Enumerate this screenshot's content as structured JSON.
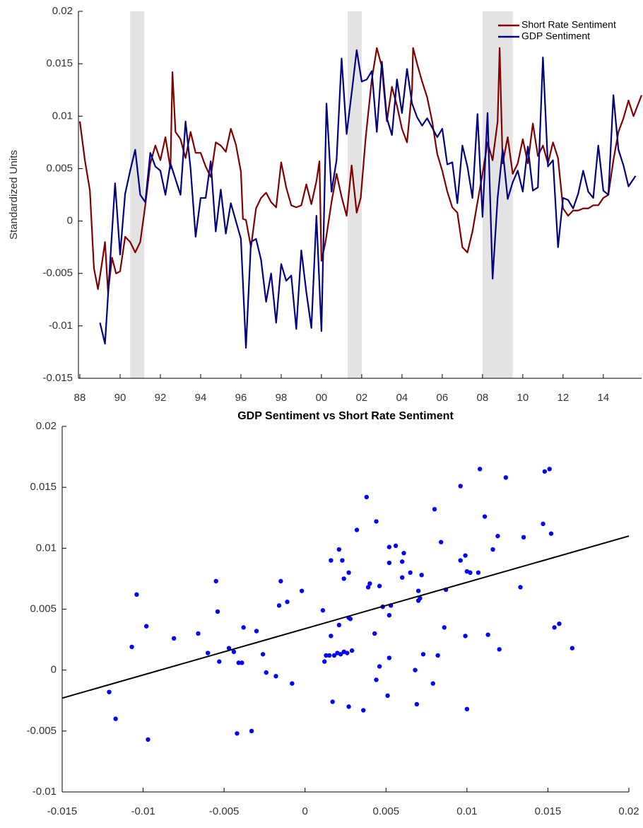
{
  "chart_data": [
    {
      "type": "line",
      "y_label": "Standardized Units",
      "xlim": [
        1987.93,
        2015.9
      ],
      "ylim": [
        -0.015,
        0.02
      ],
      "yticks": [
        -0.015,
        -0.01,
        -0.005,
        0,
        0.005,
        0.01,
        0.015,
        0.02
      ],
      "xticks": [
        {
          "value": 1988,
          "label": "88"
        },
        {
          "value": 1990,
          "label": "90"
        },
        {
          "value": 1992,
          "label": "92"
        },
        {
          "value": 1994,
          "label": "94"
        },
        {
          "value": 1996,
          "label": "96"
        },
        {
          "value": 1998,
          "label": "98"
        },
        {
          "value": 2000,
          "label": "00"
        },
        {
          "value": 2002,
          "label": "02"
        },
        {
          "value": 2004,
          "label": "04"
        },
        {
          "value": 2006,
          "label": "06"
        },
        {
          "value": 2008,
          "label": "08"
        },
        {
          "value": 2010,
          "label": "10"
        },
        {
          "value": 2012,
          "label": "12"
        },
        {
          "value": 2014,
          "label": "14"
        }
      ],
      "grid": false,
      "legend": "upper right",
      "shaded_periods": [
        [
          1990.5,
          1991.2
        ],
        [
          2001.3,
          2002.0
        ],
        [
          2008.0,
          2009.5
        ]
      ],
      "shade_color": "#e3e3e3",
      "series": [
        {
          "name": "Short Rate Sentiment",
          "color": "#800000",
          "x": [
            1988.0,
            1988.25,
            1988.5,
            1988.7,
            1988.9,
            1989.1,
            1989.25,
            1989.4,
            1989.6,
            1989.8,
            1990.0,
            1990.25,
            1990.5,
            1990.75,
            1991.0,
            1991.25,
            1991.5,
            1991.75,
            1992.0,
            1992.25,
            1992.5,
            1992.6,
            1992.75,
            1993.0,
            1993.25,
            1993.5,
            1993.75,
            1994.0,
            1994.25,
            1994.5,
            1994.75,
            1995.0,
            1995.25,
            1995.5,
            1995.75,
            1996.0,
            1996.1,
            1996.25,
            1996.5,
            1996.75,
            1997.0,
            1997.25,
            1997.5,
            1997.75,
            1998.0,
            1998.25,
            1998.5,
            1998.75,
            1999.0,
            1999.25,
            1999.5,
            1999.75,
            1999.9,
            2000.0,
            2000.2,
            2000.5,
            2000.75,
            2001.0,
            2001.25,
            2001.5,
            2001.75,
            2001.95,
            2002.2,
            2002.5,
            2002.75,
            2003.0,
            2003.25,
            2003.5,
            2003.75,
            2004.0,
            2004.25,
            2004.5,
            2004.55,
            2004.75,
            2005.0,
            2005.25,
            2005.5,
            2005.75,
            2006.0,
            2006.25,
            2006.5,
            2006.75,
            2007.0,
            2007.25,
            2007.5,
            2007.75,
            2008.0,
            2008.25,
            2008.5,
            2008.75,
            2008.85,
            2009.0,
            2009.25,
            2009.5,
            2009.75,
            2010.0,
            2010.25,
            2010.5,
            2010.75,
            2011.0,
            2011.25,
            2011.5,
            2011.75,
            2012.0,
            2012.25,
            2012.5,
            2012.75,
            2013.0,
            2013.25,
            2013.5,
            2013.75,
            2014.0,
            2014.25,
            2014.5,
            2014.75,
            2015.0,
            2015.25,
            2015.5,
            2015.9
          ],
          "values": [
            0.0095,
            0.0058,
            0.0029,
            -0.0045,
            -0.0065,
            -0.004,
            -0.002,
            -0.0068,
            -0.0035,
            -0.005,
            -0.0048,
            -0.0015,
            -0.002,
            -0.003,
            -0.002,
            0.0015,
            0.0055,
            0.0072,
            0.0058,
            0.008,
            0.005,
            0.0142,
            0.0085,
            0.0078,
            0.006,
            0.0085,
            0.0065,
            0.0065,
            0.0052,
            0.0042,
            0.0075,
            0.0072,
            0.0066,
            0.0088,
            0.0073,
            0.0047,
            0.0002,
            0.0001,
            -0.0025,
            0.0012,
            0.0022,
            0.0027,
            0.0018,
            0.0013,
            0.0056,
            0.0032,
            0.0015,
            0.0013,
            0.0015,
            0.0035,
            0.0016,
            0.0038,
            0.0057,
            -0.0038,
            -0.002,
            0.0018,
            0.0045,
            0.0023,
            0.0005,
            0.0053,
            0.0008,
            0.0022,
            0.008,
            0.0135,
            0.0165,
            0.0147,
            0.0095,
            0.0128,
            0.011,
            0.0088,
            0.0075,
            0.0125,
            0.0165,
            0.015,
            0.0133,
            0.0118,
            0.0095,
            0.0064,
            0.0048,
            0.0028,
            0.0013,
            0.0008,
            -0.0025,
            -0.003,
            -0.001,
            0.0018,
            0.0045,
            0.0075,
            0.0058,
            0.0095,
            0.0165,
            0.0055,
            0.008,
            0.0045,
            0.0055,
            0.0078,
            0.0055,
            0.0093,
            0.0062,
            0.0072,
            0.0055,
            0.0075,
            0.006,
            0.0012,
            0.0005,
            0.001,
            0.001,
            0.0012,
            0.0012,
            0.0015,
            0.0015,
            0.0022,
            0.0025,
            0.0058,
            0.0085,
            0.0098,
            0.0115,
            0.01,
            0.012
          ]
        },
        {
          "name": "GDP Sentiment",
          "color": "#000080",
          "x": [
            1989.0,
            1989.25,
            1989.75,
            1990.0,
            1990.25,
            1990.5,
            1990.75,
            1991.0,
            1991.25,
            1991.5,
            1991.75,
            1992.0,
            1992.25,
            1992.5,
            1992.75,
            1993.0,
            1993.25,
            1993.5,
            1993.75,
            1994.0,
            1994.25,
            1994.5,
            1994.75,
            1995.0,
            1995.25,
            1995.5,
            1995.75,
            1996.0,
            1996.25,
            1996.5,
            1996.75,
            1997.0,
            1997.25,
            1997.5,
            1997.75,
            1998.0,
            1998.25,
            1998.5,
            1998.75,
            1999.0,
            1999.25,
            1999.5,
            1999.75,
            2000.0,
            2000.25,
            2000.5,
            2000.75,
            2001.0,
            2001.25,
            2001.5,
            2001.75,
            2002.0,
            2002.25,
            2002.5,
            2002.75,
            2003.0,
            2003.25,
            2003.5,
            2003.75,
            2004.0,
            2004.25,
            2004.5,
            2004.75,
            2005.0,
            2005.25,
            2005.5,
            2005.75,
            2006.0,
            2006.25,
            2006.5,
            2006.75,
            2007.0,
            2007.25,
            2007.5,
            2007.75,
            2008.0,
            2008.25,
            2008.5,
            2008.75,
            2009.0,
            2009.25,
            2009.5,
            2009.75,
            2010.0,
            2010.25,
            2010.5,
            2010.75,
            2011.0,
            2011.25,
            2011.5,
            2011.75,
            2012.0,
            2012.25,
            2012.5,
            2012.75,
            2013.0,
            2013.25,
            2013.5,
            2013.75,
            2014.0,
            2014.25,
            2014.5,
            2014.75,
            2015.0,
            2015.25,
            2015.6
          ],
          "values": [
            -0.0097,
            -0.0117,
            0.0036,
            -0.0032,
            0.0026,
            0.0048,
            0.0068,
            0.0025,
            0.0018,
            0.0065,
            0.0052,
            0.0048,
            0.0025,
            0.0055,
            0.004,
            0.0025,
            0.0095,
            0.005,
            -0.0015,
            0.0022,
            0.0022,
            0.0057,
            -0.001,
            0.003,
            -0.0012,
            0.0017,
            0.0,
            -0.0017,
            -0.0121,
            -0.002,
            -0.0017,
            -0.0037,
            -0.0077,
            -0.005,
            -0.0097,
            -0.0041,
            -0.0057,
            -0.0052,
            -0.0103,
            -0.0028,
            -0.0068,
            -0.0102,
            0.0005,
            -0.0105,
            0.0112,
            0.0028,
            0.0058,
            0.0155,
            0.0083,
            0.0122,
            0.0163,
            0.0133,
            0.0135,
            0.0143,
            0.0085,
            0.0152,
            0.0098,
            0.0082,
            0.0135,
            0.0103,
            0.0145,
            0.0112,
            0.0099,
            0.0091,
            0.0098,
            0.0089,
            0.008,
            0.0088,
            0.0054,
            0.0056,
            0.0017,
            0.0072,
            0.0052,
            0.0022,
            0.0102,
            0.0004,
            0.0103,
            -0.0055,
            0.0022,
            0.0068,
            0.0021,
            0.0037,
            0.0048,
            0.0028,
            0.0071,
            0.0029,
            0.0032,
            0.0156,
            0.0052,
            0.0058,
            -0.0025,
            0.0022,
            0.002,
            0.0012,
            0.0026,
            0.0048,
            0.0028,
            0.0022,
            0.0072,
            0.0029,
            0.0025,
            0.012,
            0.0068,
            0.0053,
            0.0033,
            0.0043
          ]
        }
      ]
    },
    {
      "type": "scatter",
      "title": "GDP Sentiment vs Short Rate Sentiment",
      "xlim": [
        -0.015,
        0.02
      ],
      "ylim": [
        -0.01,
        0.02
      ],
      "xticks": [
        -0.015,
        -0.01,
        -0.005,
        0,
        0.005,
        0.01,
        0.015,
        0.02
      ],
      "yticks": [
        -0.01,
        -0.005,
        0,
        0.005,
        0.01,
        0.015,
        0.02
      ],
      "grid": false,
      "color": "#0000ff",
      "x": [
        -0.0121,
        -0.0117,
        -0.0097,
        -0.0107,
        -0.0104,
        -0.0098,
        -0.0081,
        -0.0066,
        -0.006,
        -0.0055,
        -0.0054,
        -0.0053,
        -0.0047,
        -0.0044,
        -0.0042,
        -0.0041,
        -0.0039,
        -0.0038,
        -0.0033,
        -0.003,
        -0.0026,
        -0.0024,
        -0.0018,
        -0.0015,
        -0.0016,
        -0.0011,
        -0.0008,
        -0.0002,
        0.0011,
        0.0012,
        0.0013,
        0.0015,
        0.0016,
        0.0016,
        0.0017,
        0.0018,
        0.002,
        0.0021,
        0.0021,
        0.0022,
        0.0023,
        0.0024,
        0.0024,
        0.0026,
        0.0027,
        0.0027,
        0.0027,
        0.0028,
        0.0029,
        0.0032,
        0.0036,
        0.0038,
        0.0039,
        0.004,
        0.0043,
        0.0044,
        0.0044,
        0.0046,
        0.0046,
        0.0048,
        0.0051,
        0.0052,
        0.0052,
        0.0052,
        0.0053,
        0.0052,
        0.0056,
        0.006,
        0.006,
        0.0061,
        0.0065,
        0.0068,
        0.0069,
        0.007,
        0.007,
        0.0071,
        0.0072,
        0.0073,
        0.0079,
        0.008,
        0.0082,
        0.0084,
        0.0086,
        0.0087,
        0.0096,
        0.0096,
        0.0099,
        0.0099,
        0.01,
        0.01,
        0.0102,
        0.0108,
        0.0107,
        0.0111,
        0.0113,
        0.0116,
        0.0119,
        0.012,
        0.0124,
        0.0133,
        0.0135,
        0.0147,
        0.0148,
        0.0151,
        0.0152,
        0.0154,
        0.0157,
        0.0165
      ],
      "values": [
        -0.0018,
        -0.004,
        -0.0057,
        0.0019,
        0.0062,
        0.0036,
        0.0026,
        0.003,
        0.0014,
        0.0073,
        0.0048,
        0.0007,
        0.0018,
        0.0015,
        -0.0052,
        0.0006,
        0.0006,
        0.0035,
        -0.005,
        0.0032,
        0.0013,
        -0.0002,
        -0.0005,
        0.0073,
        0.0053,
        0.0056,
        -0.0011,
        0.0065,
        0.0049,
        0.0007,
        0.0012,
        0.0012,
        0.009,
        0.0028,
        -0.0026,
        0.0012,
        0.0014,
        0.0099,
        0.0037,
        0.0013,
        0.009,
        0.0015,
        0.0075,
        0.0014,
        0.008,
        -0.003,
        0.0043,
        0.0042,
        0.0016,
        0.0115,
        -0.0033,
        0.0142,
        0.0068,
        0.0071,
        0.003,
        0.0122,
        -0.0008,
        0.0069,
        0.0003,
        0.0052,
        -0.0021,
        0.001,
        0.0101,
        0.0088,
        0.0053,
        0.0045,
        0.0102,
        0.0089,
        0.0076,
        0.0096,
        0.008,
        0.0,
        -0.0028,
        0.0065,
        0.0057,
        0.0059,
        0.0078,
        0.0013,
        -0.0011,
        0.0132,
        0.0012,
        0.0105,
        0.0035,
        0.0066,
        0.0151,
        0.009,
        0.0028,
        0.0094,
        0.0081,
        -0.0032,
        0.008,
        0.0165,
        0.008,
        0.0126,
        0.0029,
        0.0099,
        0.011,
        0.0017,
        0.0158,
        0.0068,
        0.0109,
        0.012,
        0.0163,
        0.0165,
        0.0112,
        0.0035,
        0.0038,
        0.0018
      ],
      "fit_line": {
        "color": "#000000",
        "x": [
          -0.015,
          0.02
        ],
        "y": [
          -0.0023,
          0.011
        ]
      }
    }
  ]
}
